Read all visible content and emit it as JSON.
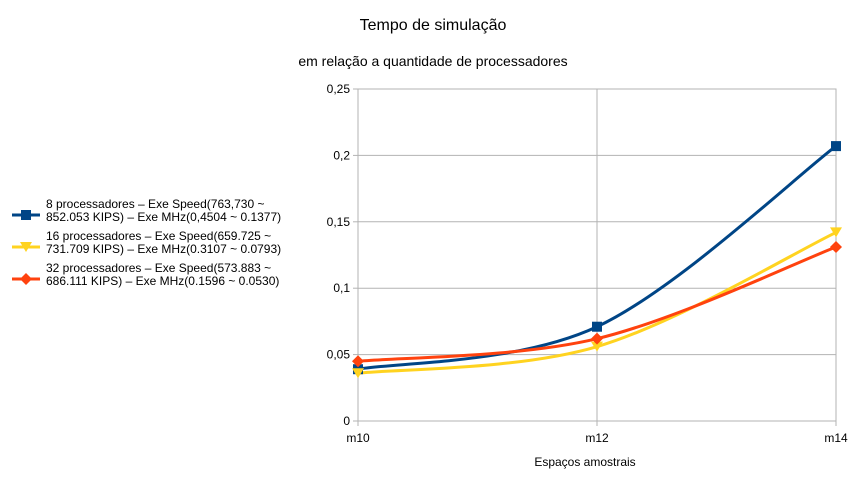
{
  "chart_data": {
    "type": "line",
    "title": "Tempo de simulação",
    "subtitle": "em relação a quantidade de processadores",
    "xlabel": "Espaços amostrais",
    "ylabel": "",
    "categories": [
      "m10",
      "m12",
      "m14"
    ],
    "ylim": [
      0,
      0.25
    ],
    "yticks": [
      "0",
      "0,05",
      "0,1",
      "0,15",
      "0,2",
      "0,25"
    ],
    "ytick_values": [
      0,
      0.05,
      0.1,
      0.15,
      0.2,
      0.25
    ],
    "grid": true,
    "legend_position": "left",
    "smooth": true,
    "series": [
      {
        "name_lines": [
          "8 processadores – Exe Speed(763,730 ~",
          "852.053 KIPS) – Exe MHz(0,4504 ~ 0.1377)"
        ],
        "values": [
          0.039,
          0.071,
          0.207
        ],
        "color": "#004586",
        "marker": "square"
      },
      {
        "name_lines": [
          "16 processadores – Exe Speed(659.725 ~",
          "731.709 KIPS) – Exe MHz(0.3107 ~ 0.0793)"
        ],
        "values": [
          0.036,
          0.056,
          0.142
        ],
        "color": "#ffd320",
        "marker": "triangle-down"
      },
      {
        "name_lines": [
          "32 processadores – Exe Speed(573.883 ~",
          "686.111 KIPS) – Exe MHz(0.1596 ~ 0.0530)"
        ],
        "values": [
          0.045,
          0.062,
          0.131
        ],
        "color": "#ff420e",
        "marker": "diamond"
      }
    ]
  }
}
